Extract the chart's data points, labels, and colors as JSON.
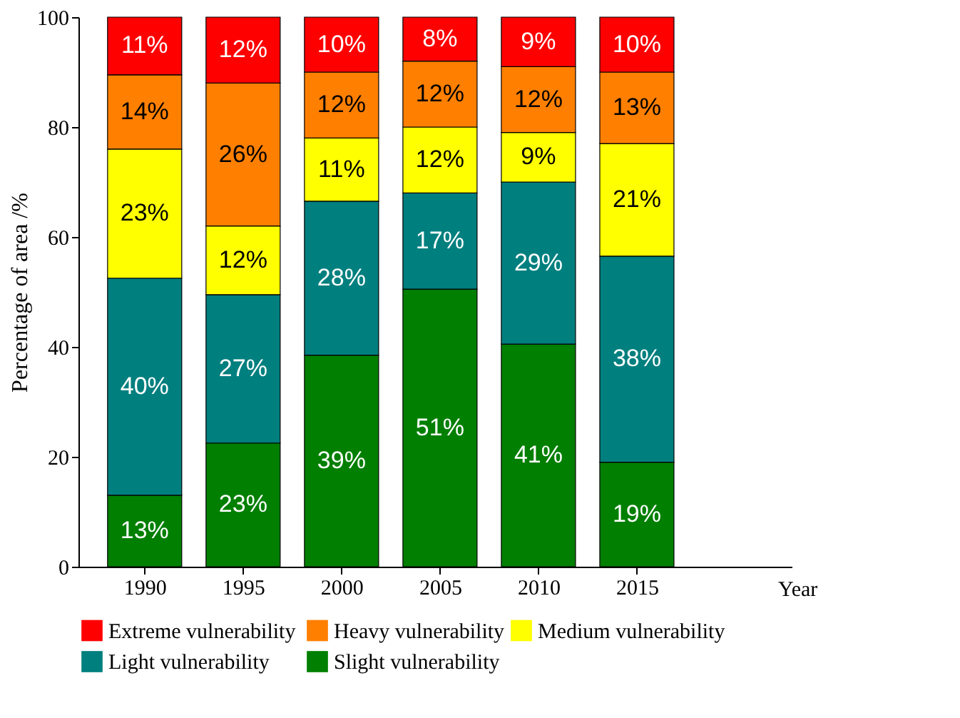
{
  "chart_data": {
    "type": "bar",
    "stacked": true,
    "ylabel": "Percentage of area /%",
    "xlabel": "Year",
    "categories": [
      "1990",
      "1995",
      "2000",
      "2005",
      "2010",
      "2015"
    ],
    "series": [
      {
        "name": "Slight vulnerability",
        "color": "#007f00",
        "values": [
          13,
          22.5,
          38.5,
          50.5,
          40.5,
          19
        ],
        "value_labels": [
          "13%",
          "23%",
          "39%",
          "51%",
          "41%",
          "19%"
        ]
      },
      {
        "name": "Light vulnerability",
        "color": "#007f7f",
        "values": [
          39.5,
          27,
          28,
          17.5,
          29.5,
          37.5
        ],
        "value_labels": [
          "40%",
          "27%",
          "28%",
          "17%",
          "29%",
          "38%"
        ]
      },
      {
        "name": "Medium vulnerability",
        "color": "#ffff00",
        "values": [
          23.5,
          12.5,
          11.5,
          12,
          9,
          20.5
        ],
        "value_labels": [
          "23%",
          "12%",
          "11%",
          "12%",
          "9%",
          "21%"
        ]
      },
      {
        "name": "Heavy vulnerability",
        "color": "#ff7f00",
        "values": [
          13.5,
          26,
          12,
          12,
          12,
          13
        ],
        "value_labels": [
          "14%",
          "26%",
          "12%",
          "12%",
          "12%",
          "13%"
        ]
      },
      {
        "name": "Extreme  vulnerability",
        "color": "#ff0000",
        "values": [
          10.5,
          12,
          10,
          8,
          9,
          10
        ],
        "value_labels": [
          "11%",
          "12%",
          "10%",
          "8%",
          "9%",
          "10%"
        ]
      }
    ],
    "ylim": [
      0,
      100
    ],
    "yticks": [
      0,
      20,
      40,
      60,
      80,
      100
    ],
    "legend": "bottom"
  }
}
